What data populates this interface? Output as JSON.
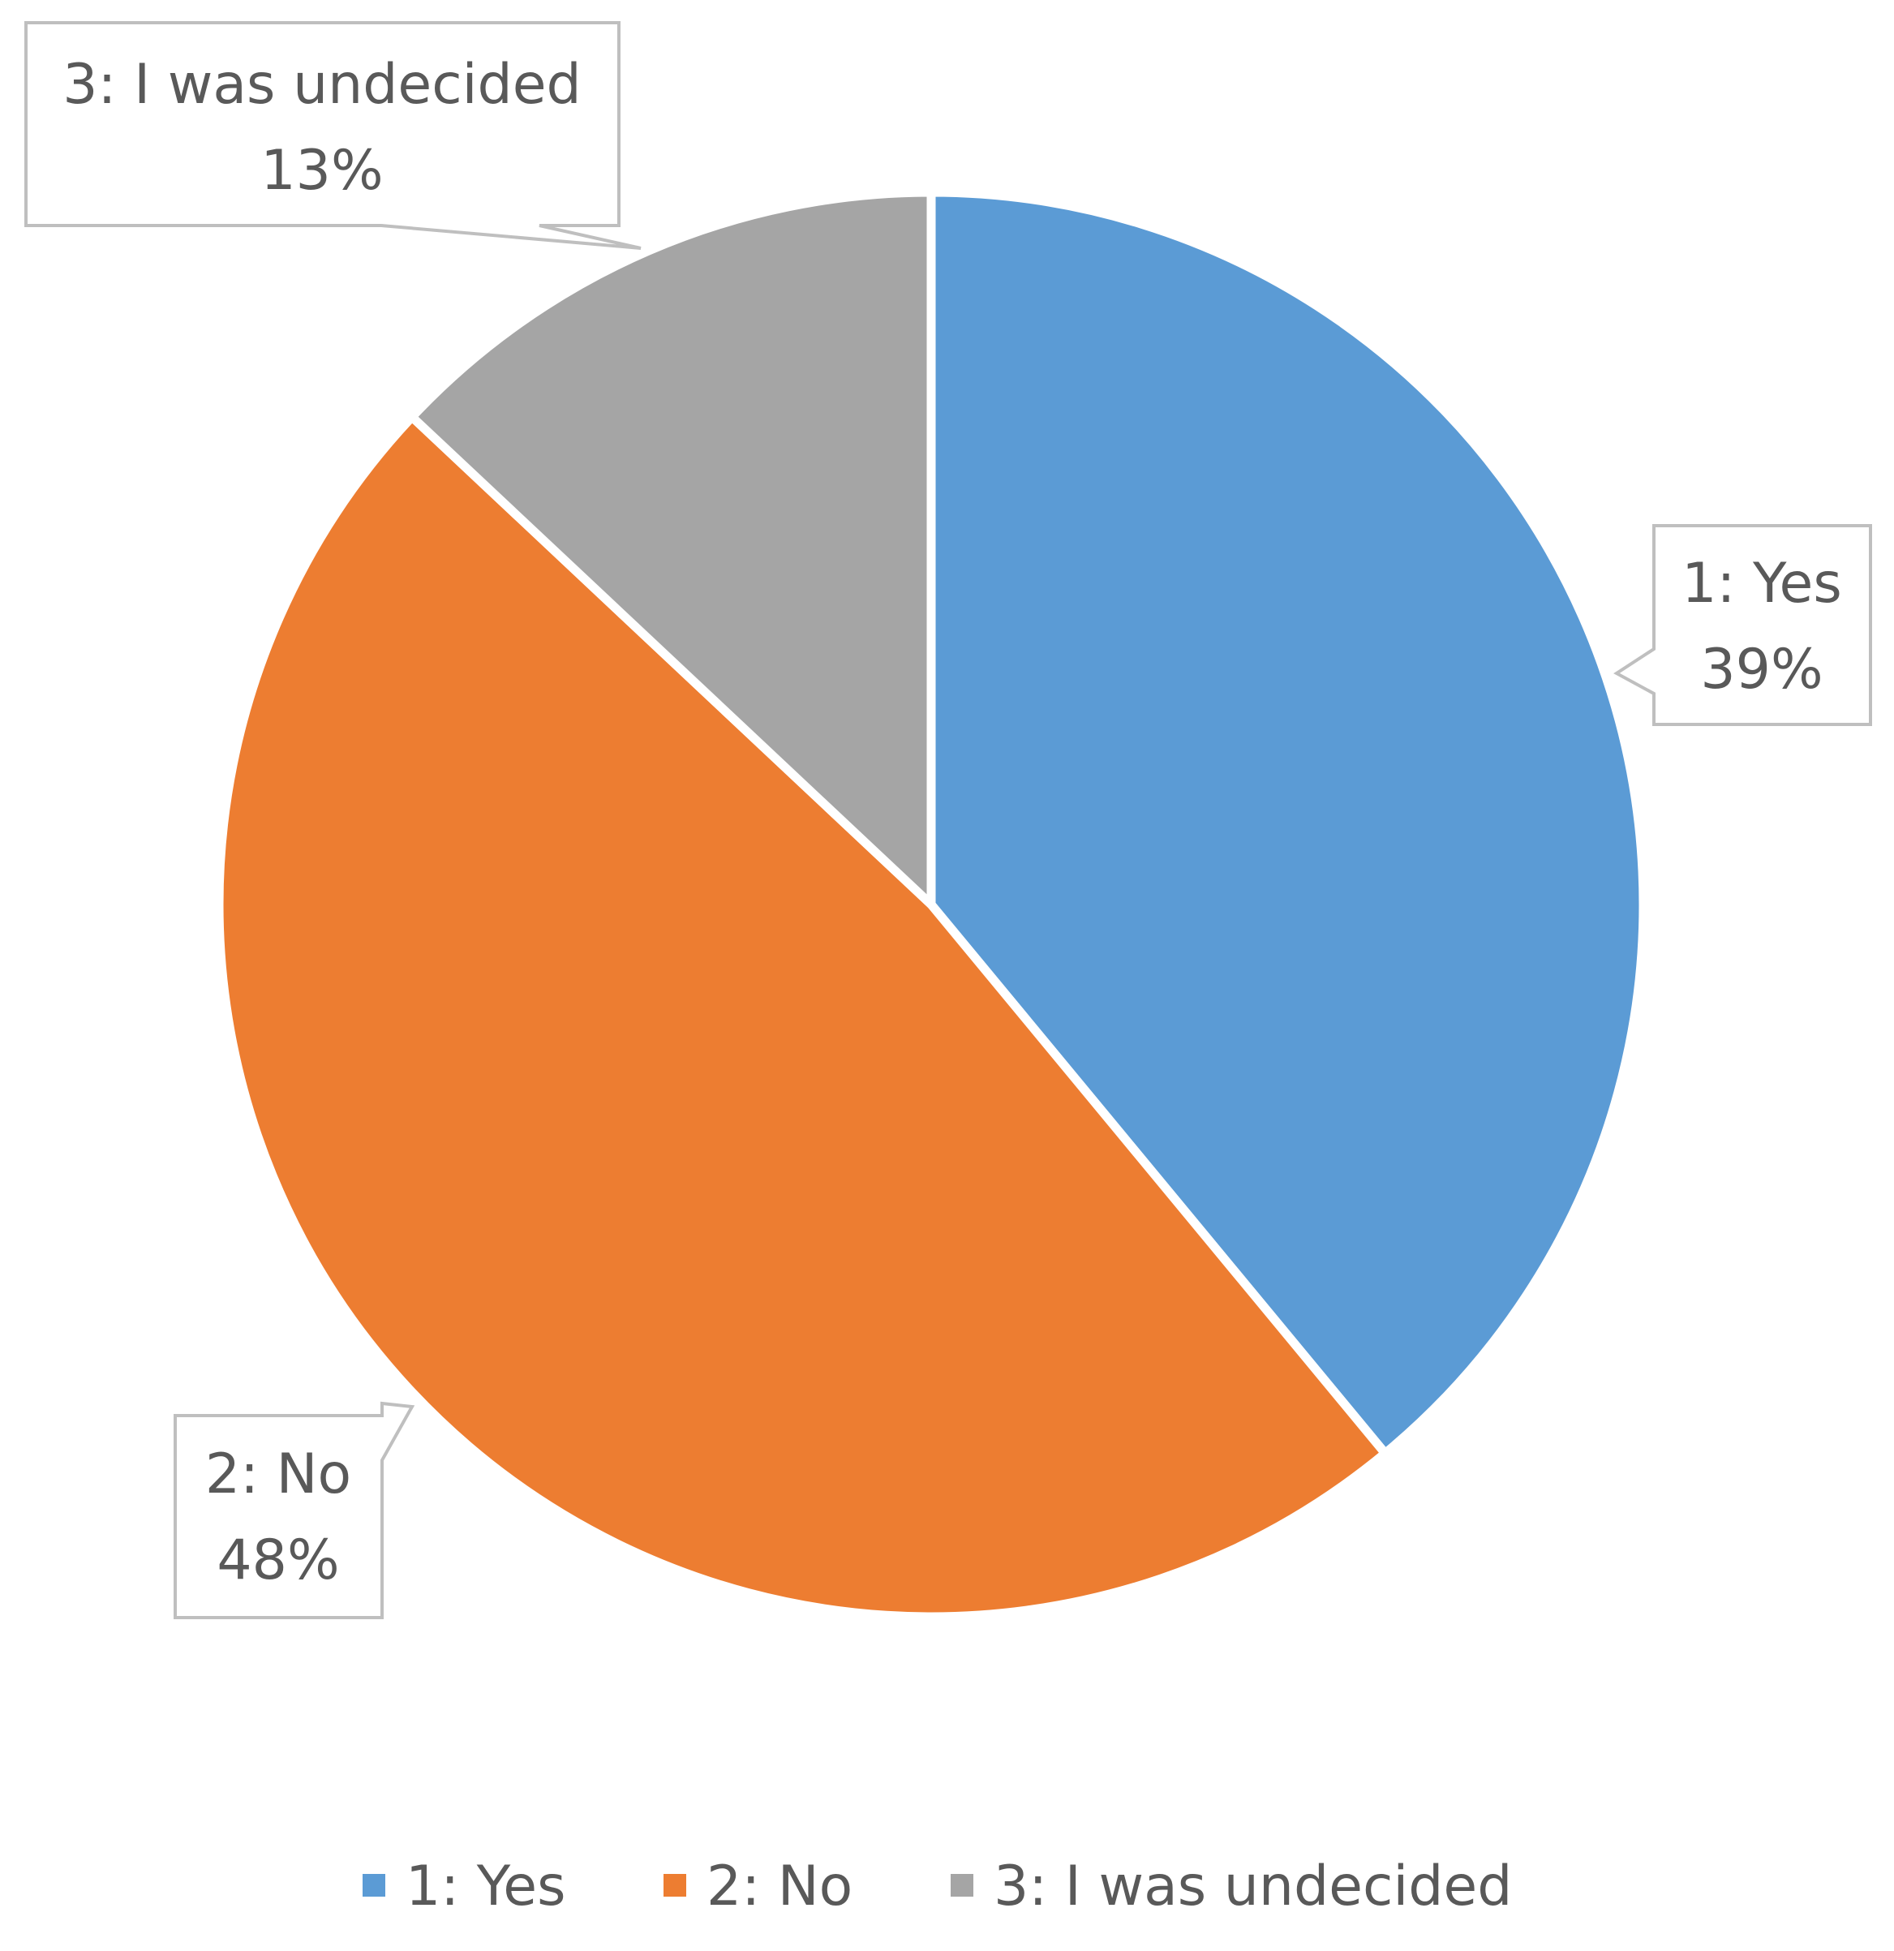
{
  "chart_data": {
    "type": "pie",
    "title": "",
    "start_angle_deg": 0,
    "direction": "clockwise",
    "legend_position": "bottom",
    "slices": [
      {
        "label": "1: Yes",
        "value": 39,
        "percent_label": "39%",
        "color": "#5B9BD5"
      },
      {
        "label": "2: No",
        "value": 48,
        "percent_label": "48%",
        "color": "#ED7D31"
      },
      {
        "label": "3: I was undecided",
        "value": 13,
        "percent_label": "13%",
        "color": "#A5A5A5"
      }
    ],
    "data_label_border_color": "#BFBFBF",
    "data_label_text_color": "#595959"
  }
}
